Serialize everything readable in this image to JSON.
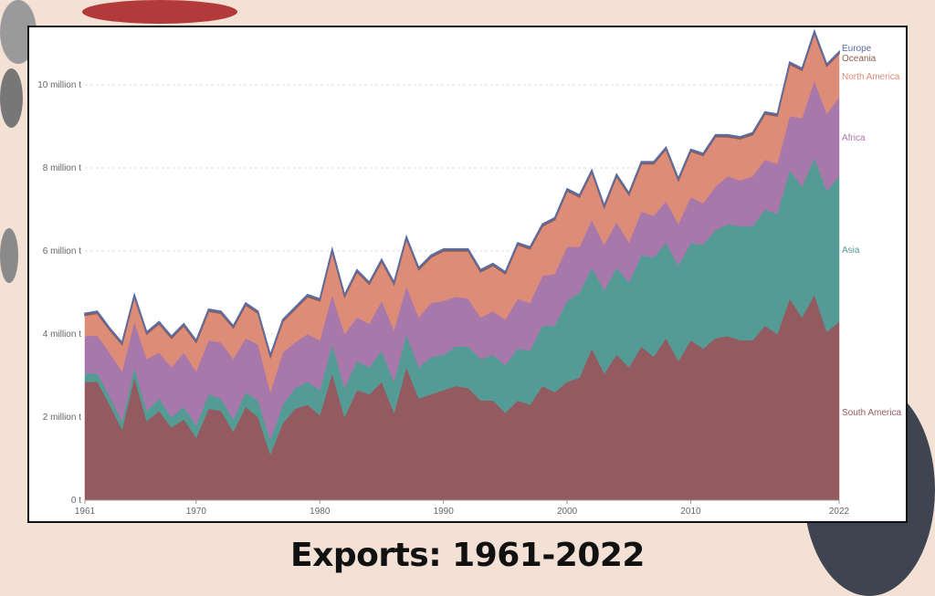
{
  "slide": {
    "title": "Exports: 1961-2022"
  },
  "chart_data": {
    "type": "area",
    "stacked": true,
    "title": "Exports: 1961-2022",
    "xlabel": "",
    "ylabel": "",
    "unit": "t",
    "ylim": [
      0,
      11500000
    ],
    "grid": true,
    "legend": "right, inline labels",
    "y_ticks": [
      {
        "value": 0,
        "label": "0 t"
      },
      {
        "value": 2000000,
        "label": "2 million t"
      },
      {
        "value": 4000000,
        "label": "4 million t"
      },
      {
        "value": 6000000,
        "label": "6 million t"
      },
      {
        "value": 8000000,
        "label": "8 million t"
      },
      {
        "value": 10000000,
        "label": "10 million t"
      }
    ],
    "x_ticks": [
      {
        "value": 1961,
        "label": "1961"
      },
      {
        "value": 1970,
        "label": "1970"
      },
      {
        "value": 1980,
        "label": "1980"
      },
      {
        "value": 1990,
        "label": "1990"
      },
      {
        "value": 2000,
        "label": "2000"
      },
      {
        "value": 2010,
        "label": "2010"
      },
      {
        "value": 2022,
        "label": "2022"
      }
    ],
    "x_start": 1961,
    "x_end": 2022,
    "values_unit": "million t",
    "series": [
      {
        "name": "South America",
        "color": "#935b60",
        "values": [
          2.85,
          2.85,
          2.3,
          1.7,
          2.95,
          1.9,
          2.15,
          1.75,
          1.95,
          1.5,
          2.2,
          2.15,
          1.65,
          2.25,
          2.0,
          1.1,
          1.85,
          2.2,
          2.3,
          2.05,
          3.05,
          2.0,
          2.65,
          2.55,
          2.85,
          2.1,
          3.2,
          2.45,
          2.55,
          2.65,
          2.75,
          2.7,
          2.4,
          2.4,
          2.1,
          2.4,
          2.3,
          2.75,
          2.6,
          2.85,
          2.95,
          3.65,
          3.05,
          3.5,
          3.2,
          3.7,
          3.45,
          3.9,
          3.35,
          3.85,
          3.65,
          3.9,
          3.95,
          3.85,
          3.85,
          4.2,
          4.0,
          4.85,
          4.4,
          4.95,
          4.05,
          4.3
        ]
      },
      {
        "name": "Asia",
        "color": "#559b95",
        "values": [
          0.2,
          0.2,
          0.2,
          0.2,
          0.25,
          0.25,
          0.3,
          0.25,
          0.3,
          0.3,
          0.35,
          0.3,
          0.3,
          0.35,
          0.4,
          0.35,
          0.45,
          0.5,
          0.55,
          0.6,
          0.7,
          0.7,
          0.7,
          0.65,
          0.75,
          0.75,
          0.8,
          0.75,
          0.9,
          0.85,
          0.95,
          1.0,
          1.0,
          1.1,
          1.15,
          1.25,
          1.3,
          1.45,
          1.6,
          1.95,
          2.05,
          1.95,
          2.0,
          2.1,
          2.05,
          2.2,
          2.4,
          2.3,
          2.3,
          2.35,
          2.5,
          2.6,
          2.7,
          2.75,
          2.75,
          2.8,
          2.9,
          3.1,
          3.15,
          3.3,
          3.4,
          3.5
        ]
      },
      {
        "name": "Africa",
        "color": "#a878aa",
        "values": [
          0.9,
          0.92,
          1.05,
          1.2,
          1.1,
          1.25,
          1.1,
          1.2,
          1.3,
          1.3,
          1.3,
          1.35,
          1.45,
          1.3,
          1.35,
          1.15,
          1.25,
          1.1,
          1.15,
          1.2,
          1.2,
          1.3,
          1.05,
          1.05,
          1.2,
          1.25,
          1.15,
          1.2,
          1.3,
          1.3,
          1.2,
          1.15,
          1.0,
          1.05,
          1.1,
          1.2,
          1.15,
          1.2,
          1.25,
          1.3,
          1.1,
          1.15,
          1.1,
          1.1,
          0.95,
          1.05,
          1.0,
          1.0,
          1.0,
          1.1,
          1.0,
          1.05,
          1.15,
          1.1,
          1.2,
          1.2,
          1.2,
          1.3,
          1.65,
          1.85,
          1.85,
          1.9
        ]
      },
      {
        "name": "North America",
        "color": "#dd8c78",
        "values": [
          0.5,
          0.53,
          0.55,
          0.65,
          0.6,
          0.6,
          0.7,
          0.7,
          0.65,
          0.7,
          0.7,
          0.7,
          0.75,
          0.8,
          0.75,
          0.85,
          0.75,
          0.8,
          0.9,
          0.95,
          1.05,
          0.9,
          1.1,
          0.95,
          0.95,
          1.1,
          1.15,
          1.15,
          1.1,
          1.2,
          1.1,
          1.15,
          1.1,
          1.1,
          1.1,
          1.3,
          1.3,
          1.2,
          1.3,
          1.35,
          1.2,
          1.15,
          0.9,
          1.1,
          1.15,
          1.15,
          1.25,
          1.25,
          1.05,
          1.1,
          1.15,
          1.2,
          0.95,
          1.0,
          1.0,
          1.1,
          1.15,
          1.25,
          1.15,
          1.15,
          1.15,
          1.05
        ]
      },
      {
        "name": "Oceania",
        "color": "#8d5b4c",
        "values": [
          0.03,
          0.03,
          0.03,
          0.03,
          0.03,
          0.03,
          0.03,
          0.03,
          0.03,
          0.03,
          0.03,
          0.03,
          0.03,
          0.03,
          0.03,
          0.03,
          0.03,
          0.03,
          0.03,
          0.03,
          0.03,
          0.03,
          0.03,
          0.03,
          0.03,
          0.03,
          0.03,
          0.03,
          0.03,
          0.03,
          0.03,
          0.03,
          0.03,
          0.03,
          0.03,
          0.03,
          0.03,
          0.03,
          0.03,
          0.03,
          0.03,
          0.03,
          0.03,
          0.03,
          0.03,
          0.03,
          0.03,
          0.03,
          0.03,
          0.03,
          0.03,
          0.03,
          0.03,
          0.03,
          0.03,
          0.03,
          0.03,
          0.03,
          0.03,
          0.03,
          0.03,
          0.03
        ]
      },
      {
        "name": "Europe",
        "color": "#5b6ca3",
        "values": [
          0.02,
          0.02,
          0.02,
          0.02,
          0.02,
          0.02,
          0.02,
          0.02,
          0.02,
          0.02,
          0.02,
          0.02,
          0.02,
          0.02,
          0.02,
          0.02,
          0.02,
          0.02,
          0.02,
          0.02,
          0.02,
          0.02,
          0.02,
          0.02,
          0.02,
          0.02,
          0.02,
          0.02,
          0.02,
          0.02,
          0.02,
          0.02,
          0.02,
          0.02,
          0.02,
          0.02,
          0.02,
          0.02,
          0.02,
          0.02,
          0.02,
          0.02,
          0.02,
          0.02,
          0.02,
          0.02,
          0.02,
          0.02,
          0.02,
          0.02,
          0.02,
          0.02,
          0.02,
          0.02,
          0.02,
          0.02,
          0.02,
          0.02,
          0.02,
          0.02,
          0.02,
          0.02
        ]
      }
    ]
  }
}
